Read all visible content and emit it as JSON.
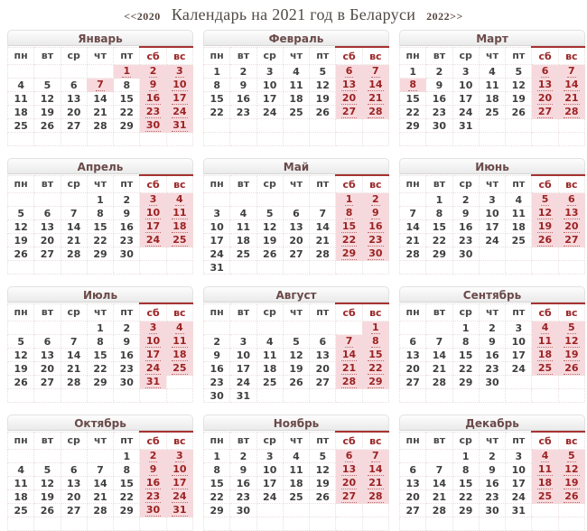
{
  "page": {
    "nav_prev": "<<2020",
    "title": "Календарь на 2021 год в Беларуси",
    "nav_next": "2022>>"
  },
  "weekdays": [
    "пн",
    "вт",
    "ср",
    "чт",
    "пт",
    "сб",
    "вс"
  ],
  "colors": {
    "weekend_bg": "#f7d9dd",
    "weekend_text": "#9b2323",
    "weekend_header_text": "#9b2727",
    "weekend_header_line": "#a83232",
    "weekday_text": "#3f3f3f",
    "month_title_text": "#6b4a4a",
    "page_title_text": "#4f4a45"
  },
  "months": [
    {
      "name": "Январь",
      "holidays": [
        1,
        7
      ],
      "weeks": [
        [
          null,
          null,
          null,
          null,
          1,
          2,
          3
        ],
        [
          4,
          5,
          6,
          7,
          8,
          9,
          10
        ],
        [
          11,
          12,
          13,
          14,
          15,
          16,
          17
        ],
        [
          18,
          19,
          20,
          21,
          22,
          23,
          24
        ],
        [
          25,
          26,
          27,
          28,
          29,
          30,
          31
        ],
        [
          null,
          null,
          null,
          null,
          null,
          null,
          null
        ]
      ]
    },
    {
      "name": "Февраль",
      "holidays": [],
      "weeks": [
        [
          1,
          2,
          3,
          4,
          5,
          6,
          7
        ],
        [
          8,
          9,
          10,
          11,
          12,
          13,
          14
        ],
        [
          15,
          16,
          17,
          18,
          19,
          20,
          21
        ],
        [
          22,
          23,
          24,
          25,
          26,
          27,
          28
        ],
        [
          null,
          null,
          null,
          null,
          null,
          null,
          null
        ],
        [
          null,
          null,
          null,
          null,
          null,
          null,
          null
        ]
      ]
    },
    {
      "name": "Март",
      "holidays": [
        8
      ],
      "weeks": [
        [
          1,
          2,
          3,
          4,
          5,
          6,
          7
        ],
        [
          8,
          9,
          10,
          11,
          12,
          13,
          14
        ],
        [
          15,
          16,
          17,
          18,
          19,
          20,
          21
        ],
        [
          22,
          23,
          24,
          25,
          26,
          27,
          28
        ],
        [
          29,
          30,
          31,
          null,
          null,
          null,
          null
        ],
        [
          null,
          null,
          null,
          null,
          null,
          null,
          null
        ]
      ]
    },
    {
      "name": "Апрель",
      "holidays": [],
      "weeks": [
        [
          null,
          null,
          null,
          1,
          2,
          3,
          4
        ],
        [
          5,
          6,
          7,
          8,
          9,
          10,
          11
        ],
        [
          12,
          13,
          14,
          15,
          16,
          17,
          18
        ],
        [
          19,
          20,
          21,
          22,
          23,
          24,
          25
        ],
        [
          26,
          27,
          28,
          29,
          30,
          null,
          null
        ],
        [
          null,
          null,
          null,
          null,
          null,
          null,
          null
        ]
      ]
    },
    {
      "name": "Май",
      "holidays": [],
      "weeks": [
        [
          null,
          null,
          null,
          null,
          null,
          1,
          2
        ],
        [
          3,
          4,
          5,
          6,
          7,
          8,
          9
        ],
        [
          10,
          11,
          12,
          13,
          14,
          15,
          16
        ],
        [
          17,
          18,
          19,
          20,
          21,
          22,
          23
        ],
        [
          24,
          25,
          26,
          27,
          28,
          29,
          30
        ],
        [
          31,
          null,
          null,
          null,
          null,
          null,
          null
        ]
      ]
    },
    {
      "name": "Июнь",
      "holidays": [],
      "weeks": [
        [
          null,
          1,
          2,
          3,
          4,
          5,
          6
        ],
        [
          7,
          8,
          9,
          10,
          11,
          12,
          13
        ],
        [
          14,
          15,
          16,
          17,
          18,
          19,
          20
        ],
        [
          21,
          22,
          23,
          24,
          25,
          26,
          27
        ],
        [
          28,
          29,
          30,
          null,
          null,
          null,
          null
        ],
        [
          null,
          null,
          null,
          null,
          null,
          null,
          null
        ]
      ]
    },
    {
      "name": "Июль",
      "holidays": [],
      "weeks": [
        [
          null,
          null,
          null,
          1,
          2,
          3,
          4
        ],
        [
          5,
          6,
          7,
          8,
          9,
          10,
          11
        ],
        [
          12,
          13,
          14,
          15,
          16,
          17,
          18
        ],
        [
          19,
          20,
          21,
          22,
          23,
          24,
          25
        ],
        [
          26,
          27,
          28,
          29,
          30,
          31,
          null
        ],
        [
          null,
          null,
          null,
          null,
          null,
          null,
          null
        ]
      ]
    },
    {
      "name": "Август",
      "holidays": [],
      "weeks": [
        [
          null,
          null,
          null,
          null,
          null,
          null,
          1
        ],
        [
          2,
          3,
          4,
          5,
          6,
          7,
          8
        ],
        [
          9,
          10,
          11,
          12,
          13,
          14,
          15
        ],
        [
          16,
          17,
          18,
          19,
          20,
          21,
          22
        ],
        [
          23,
          24,
          25,
          26,
          27,
          28,
          29
        ],
        [
          30,
          31,
          null,
          null,
          null,
          null,
          null
        ]
      ]
    },
    {
      "name": "Сентябрь",
      "holidays": [],
      "weeks": [
        [
          null,
          null,
          1,
          2,
          3,
          4,
          5
        ],
        [
          6,
          7,
          8,
          9,
          10,
          11,
          12
        ],
        [
          13,
          14,
          15,
          16,
          17,
          18,
          19
        ],
        [
          20,
          21,
          22,
          23,
          24,
          25,
          26
        ],
        [
          27,
          28,
          29,
          30,
          null,
          null,
          null
        ],
        [
          null,
          null,
          null,
          null,
          null,
          null,
          null
        ]
      ]
    },
    {
      "name": "Октябрь",
      "holidays": [],
      "weeks": [
        [
          null,
          null,
          null,
          null,
          1,
          2,
          3
        ],
        [
          4,
          5,
          6,
          7,
          8,
          9,
          10
        ],
        [
          11,
          12,
          13,
          14,
          15,
          16,
          17
        ],
        [
          18,
          19,
          20,
          21,
          22,
          23,
          24
        ],
        [
          25,
          26,
          27,
          28,
          29,
          30,
          31
        ],
        [
          null,
          null,
          null,
          null,
          null,
          null,
          null
        ]
      ]
    },
    {
      "name": "Ноябрь",
      "holidays": [],
      "weeks": [
        [
          1,
          2,
          3,
          4,
          5,
          6,
          7
        ],
        [
          8,
          9,
          10,
          11,
          12,
          13,
          14
        ],
        [
          15,
          16,
          17,
          18,
          19,
          20,
          21
        ],
        [
          22,
          23,
          24,
          25,
          26,
          27,
          28
        ],
        [
          29,
          30,
          null,
          null,
          null,
          null,
          null
        ],
        [
          null,
          null,
          null,
          null,
          null,
          null,
          null
        ]
      ]
    },
    {
      "name": "Декабрь",
      "holidays": [],
      "weeks": [
        [
          null,
          null,
          1,
          2,
          3,
          4,
          5
        ],
        [
          6,
          7,
          8,
          9,
          10,
          11,
          12
        ],
        [
          13,
          14,
          15,
          16,
          17,
          18,
          19
        ],
        [
          20,
          21,
          22,
          23,
          24,
          25,
          26
        ],
        [
          27,
          28,
          29,
          30,
          31,
          null,
          null
        ],
        [
          null,
          null,
          null,
          null,
          null,
          null,
          null
        ]
      ]
    }
  ]
}
